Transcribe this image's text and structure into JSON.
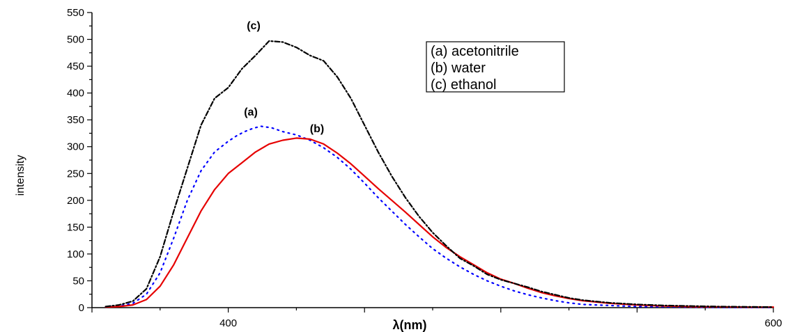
{
  "chart_data": {
    "type": "line",
    "xlabel": "λ(nm)",
    "ylabel": "intensity",
    "xlim": [
      350,
      600
    ],
    "ylim": [
      0,
      550
    ],
    "x_ticks": [
      400,
      600
    ],
    "y_ticks": [
      0,
      50,
      100,
      150,
      200,
      250,
      300,
      350,
      400,
      450,
      500,
      550
    ],
    "grid": false,
    "legend_position": "top-right",
    "legend": [
      "(a) acetonitrile",
      "(b) water",
      "(c) ethanol"
    ],
    "series": [
      {
        "name": "(a) acetonitrile",
        "label": "(a)",
        "color": "#0000ff",
        "style": "dotted",
        "x": [
          355,
          360,
          365,
          370,
          375,
          380,
          385,
          390,
          395,
          400,
          403,
          406,
          409,
          412,
          416,
          420,
          425,
          430,
          435,
          440,
          445,
          450,
          455,
          460,
          465,
          470,
          475,
          480,
          485,
          490,
          495,
          500,
          505,
          510,
          515,
          520,
          525,
          530,
          540,
          550,
          560,
          570,
          580,
          590,
          600
        ],
        "y": [
          1,
          3,
          8,
          25,
          65,
          130,
          200,
          255,
          290,
          310,
          320,
          328,
          334,
          338,
          335,
          328,
          322,
          312,
          298,
          280,
          258,
          232,
          205,
          180,
          155,
          132,
          110,
          92,
          76,
          62,
          50,
          40,
          31,
          24,
          18,
          13,
          9,
          6,
          4,
          2,
          1.5,
          1,
          0.5,
          0.3,
          0.2
        ]
      },
      {
        "name": "(b) water",
        "label": "(b)",
        "color": "#e60000",
        "style": "solid",
        "x": [
          355,
          360,
          365,
          370,
          375,
          380,
          385,
          390,
          395,
          400,
          405,
          410,
          415,
          420,
          425,
          430,
          435,
          440,
          445,
          450,
          455,
          460,
          465,
          470,
          475,
          480,
          485,
          490,
          495,
          500,
          505,
          510,
          515,
          520,
          525,
          530,
          540,
          550,
          560,
          570,
          580,
          590,
          600
        ],
        "y": [
          1,
          2,
          5,
          15,
          40,
          80,
          130,
          180,
          220,
          250,
          270,
          290,
          305,
          312,
          316,
          314,
          305,
          288,
          268,
          245,
          222,
          200,
          178,
          155,
          132,
          112,
          95,
          80,
          65,
          53,
          45,
          36,
          28,
          22,
          17,
          13,
          8,
          5,
          3,
          2,
          1.5,
          1,
          1
        ]
      },
      {
        "name": "(c) ethanol",
        "label": "(c)",
        "color": "#000000",
        "style": "dash-dot",
        "x": [
          355,
          360,
          365,
          370,
          375,
          380,
          385,
          390,
          395,
          400,
          405,
          410,
          415,
          420,
          425,
          430,
          435,
          440,
          445,
          450,
          455,
          460,
          465,
          470,
          475,
          480,
          485,
          490,
          495,
          500,
          505,
          510,
          515,
          520,
          525,
          530,
          540,
          550,
          560,
          570,
          580,
          590,
          600
        ],
        "y": [
          2,
          5,
          12,
          35,
          95,
          180,
          260,
          340,
          390,
          410,
          445,
          470,
          497,
          495,
          485,
          470,
          460,
          430,
          390,
          340,
          290,
          245,
          205,
          170,
          140,
          115,
          92,
          78,
          62,
          52,
          45,
          38,
          30,
          24,
          18,
          14,
          9,
          6,
          4,
          3,
          2,
          1.5,
          1
        ]
      }
    ]
  }
}
